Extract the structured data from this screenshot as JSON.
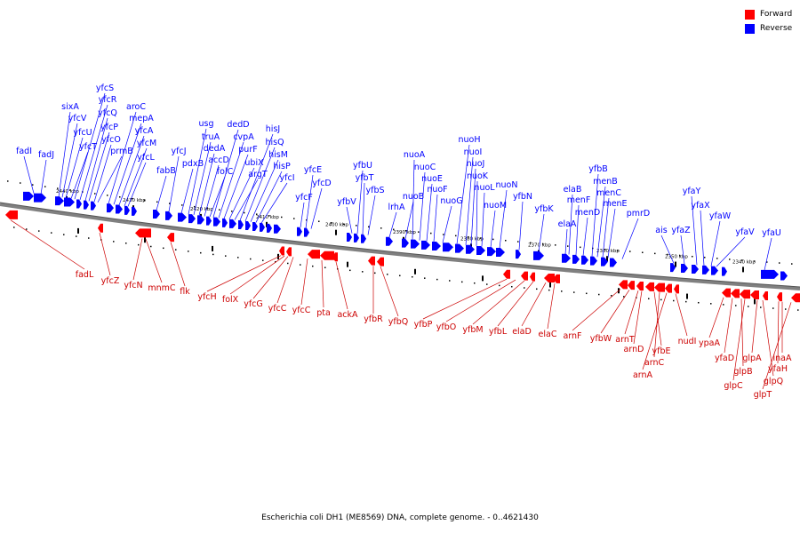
{
  "legend": [
    {
      "label": "Forward",
      "color": "#ff0000"
    },
    {
      "label": "Reverse",
      "color": "#0000ff"
    }
  ],
  "colors": {
    "forward": "#ff0000",
    "reverse": "#0000ff",
    "backbone": "#808080"
  },
  "caption": "Escherichia coli DH1 (ME8569) DNA, complete genome. - 0..4621430",
  "scale_labels": [
    "2440 kbp",
    "2430 kbp",
    "2420 kbp",
    "2410 kbp",
    "2400 kbp",
    "2390 kbp",
    "2380 kbp",
    "2370 kbp",
    "2360 kbp",
    "2350 kbp",
    "2340 kbp"
  ],
  "forward_genes": [
    "fadL",
    "yfcZ",
    "yfcN",
    "mnmC",
    "flk",
    "yfcH",
    "folX",
    "yfcG",
    "yfcC",
    "yfcC",
    "pta",
    "ackA",
    "yfbR",
    "yfbQ",
    "yfbP",
    "yfbO",
    "yfbM",
    "yfbL",
    "elaD",
    "elaC",
    "arnF",
    "yfbW",
    "arnT",
    "arnD",
    "yfbE",
    "arnC",
    "arnA",
    "nudI",
    "ypaA",
    "yfaD",
    "glpB",
    "glpC",
    "glpA",
    "glpQ",
    "yfaH",
    "inaA",
    "glpT"
  ],
  "reverse_genes": [
    "fadI",
    "fadJ",
    "sixA",
    "yfcV",
    "yfcU",
    "yfcT",
    "yfcS",
    "yfcR",
    "yfcQ",
    "yfcP",
    "yfcO",
    "prmB",
    "aroC",
    "mepA",
    "yfcA",
    "yfcM",
    "yfcL",
    "fabB",
    "yfcJ",
    "pdxB",
    "usg",
    "truA",
    "dedA",
    "accD",
    "folC",
    "dedD",
    "cvpA",
    "purF",
    "ubiX",
    "argT",
    "hisJ",
    "hisQ",
    "hisM",
    "hisP",
    "yfcI",
    "yfcF",
    "yfcE",
    "yfcD",
    "yfbV",
    "yfbU",
    "yfbT",
    "yfbS",
    "lrhA",
    "nuoB",
    "nuoA",
    "nuoC",
    "nuoE",
    "nuoF",
    "nuoG",
    "nuoH",
    "nuoI",
    "nuoJ",
    "nuoK",
    "nuoL",
    "nuoM",
    "nuoN",
    "yfbN",
    "yfbK",
    "elaA",
    "elaB",
    "menF",
    "menD",
    "yfbB",
    "menB",
    "menC",
    "menE",
    "pmrD",
    "ais",
    "yfaZ",
    "yfaY",
    "yfaX",
    "yfaW",
    "yfaV",
    "yfaU"
  ]
}
